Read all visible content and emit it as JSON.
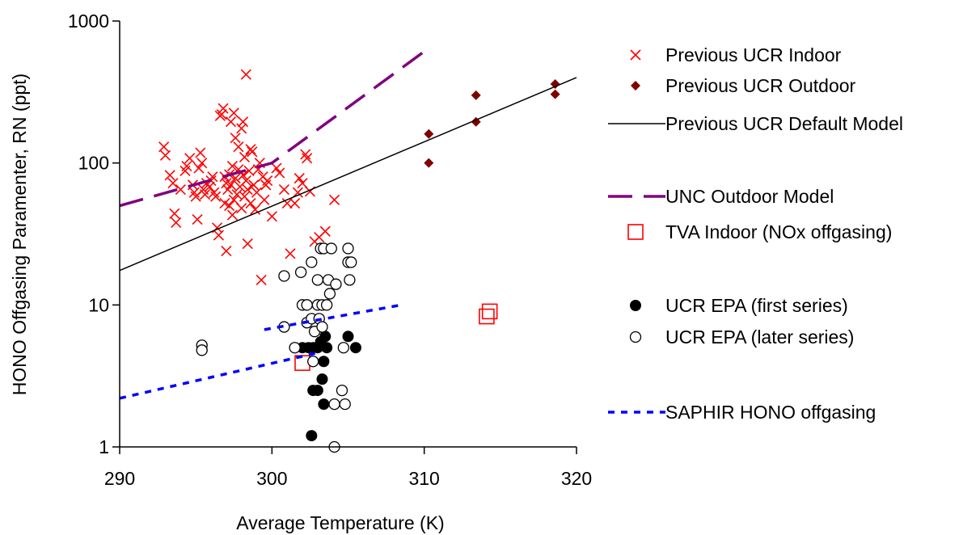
{
  "chart_data": {
    "type": "scatter",
    "title": "",
    "xlabel": "Average Temperature (K)",
    "ylabel": "HONO Offgasing Paramenter, RN (ppt)",
    "xlim": [
      290,
      320
    ],
    "ylim": [
      1,
      1000
    ],
    "y_scale": "log",
    "x_ticks": [
      "290",
      "300",
      "310",
      "320"
    ],
    "y_ticks": [
      "1",
      "10",
      "100",
      "1000"
    ],
    "grid": false,
    "legend_position": "right",
    "series": [
      {
        "name": "Previous UCR Indoor",
        "kind": "points",
        "marker": "x",
        "color": "#ff0000",
        "points": [
          [
            292.9,
            130
          ],
          [
            293.0,
            113
          ],
          [
            293.3,
            82
          ],
          [
            293.5,
            72
          ],
          [
            293.6,
            44
          ],
          [
            293.7,
            38
          ],
          [
            294.0,
            65
          ],
          [
            294.3,
            88
          ],
          [
            294.4,
            95
          ],
          [
            294.6,
            108
          ],
          [
            294.8,
            70
          ],
          [
            294.9,
            62
          ],
          [
            295.0,
            58
          ],
          [
            295.2,
            92
          ],
          [
            295.3,
            118
          ],
          [
            295.4,
            100
          ],
          [
            295.5,
            65
          ],
          [
            295.6,
            60
          ],
          [
            295.7,
            72
          ],
          [
            295.9,
            68
          ],
          [
            296.0,
            75
          ],
          [
            296.1,
            80
          ],
          [
            296.2,
            62
          ],
          [
            296.3,
            58
          ],
          [
            296.4,
            35
          ],
          [
            296.5,
            31
          ],
          [
            296.6,
            215
          ],
          [
            296.7,
            220
          ],
          [
            296.8,
            242
          ],
          [
            296.9,
            80
          ],
          [
            297.0,
            72
          ],
          [
            297.0,
            24
          ],
          [
            297.1,
            65
          ],
          [
            297.2,
            83
          ],
          [
            297.2,
            50
          ],
          [
            297.3,
            195
          ],
          [
            297.3,
            70
          ],
          [
            297.4,
            43
          ],
          [
            297.5,
            225
          ],
          [
            297.5,
            55
          ],
          [
            297.6,
            150
          ],
          [
            297.6,
            78
          ],
          [
            297.7,
            60
          ],
          [
            297.8,
            130
          ],
          [
            297.8,
            90
          ],
          [
            297.9,
            68
          ],
          [
            298.0,
            175
          ],
          [
            298.0,
            48
          ],
          [
            298.1,
            195
          ],
          [
            298.1,
            82
          ],
          [
            298.2,
            110
          ],
          [
            298.2,
            58
          ],
          [
            298.3,
            420
          ],
          [
            298.3,
            75
          ],
          [
            298.4,
            65
          ],
          [
            298.4,
            27
          ],
          [
            298.5,
            88
          ],
          [
            298.6,
            52
          ],
          [
            298.7,
            120
          ],
          [
            298.8,
            70
          ],
          [
            298.9,
            47
          ],
          [
            299.0,
            62
          ],
          [
            299.1,
            90
          ],
          [
            299.2,
            100
          ],
          [
            299.3,
            15
          ],
          [
            299.4,
            80
          ],
          [
            299.5,
            55
          ],
          [
            299.7,
            75
          ],
          [
            300.0,
            42
          ],
          [
            300.3,
            92
          ],
          [
            300.5,
            85
          ],
          [
            300.8,
            65
          ],
          [
            301.0,
            52
          ],
          [
            301.2,
            23
          ],
          [
            301.5,
            52
          ],
          [
            301.7,
            62
          ],
          [
            301.8,
            78
          ],
          [
            302.0,
            72
          ],
          [
            302.2,
            115
          ],
          [
            302.3,
            108
          ],
          [
            302.5,
            63
          ],
          [
            302.8,
            28
          ],
          [
            303.1,
            30
          ],
          [
            303.5,
            33
          ],
          [
            304.1,
            55
          ],
          [
            296.9,
            52
          ],
          [
            297.4,
            95
          ],
          [
            298.6,
            125
          ],
          [
            299.6,
            70
          ],
          [
            295.1,
            40
          ]
        ]
      },
      {
        "name": "Previous UCR Outdoor",
        "kind": "points",
        "marker": "diamond",
        "color": "#800000",
        "points": [
          [
            310.3,
            160
          ],
          [
            310.3,
            100
          ],
          [
            313.4,
            300
          ],
          [
            313.4,
            195
          ],
          [
            318.6,
            360
          ],
          [
            318.6,
            305
          ]
        ]
      },
      {
        "name": "Previous UCR Default Model",
        "kind": "line",
        "dash": "solid",
        "color": "#000000",
        "points": [
          [
            290,
            17.5
          ],
          [
            320,
            400
          ]
        ]
      },
      {
        "name": "UNC Outdoor Model",
        "kind": "line",
        "dash": "long-dash",
        "color": "#800080",
        "points": [
          [
            290,
            50
          ],
          [
            300,
            100
          ],
          [
            310,
            610
          ]
        ]
      },
      {
        "name": "TVA Indoor (NOx offgasing)",
        "kind": "points",
        "marker": "open-square",
        "color": "#ff0000",
        "points": [
          [
            302.0,
            3.9
          ],
          [
            314.1,
            8.3
          ],
          [
            314.3,
            9.0
          ]
        ]
      },
      {
        "name": "UCR EPA (first series)",
        "kind": "points",
        "marker": "filled-circle",
        "color": "#000000",
        "points": [
          [
            302.0,
            5.0
          ],
          [
            302.4,
            5.0
          ],
          [
            302.7,
            5.0
          ],
          [
            303.0,
            5.0
          ],
          [
            303.2,
            5.5
          ],
          [
            303.4,
            4.0
          ],
          [
            303.5,
            6.0
          ],
          [
            303.6,
            5.0
          ],
          [
            303.3,
            3.0
          ],
          [
            303.0,
            2.5
          ],
          [
            302.7,
            2.5
          ],
          [
            303.4,
            2.0
          ],
          [
            302.6,
            1.2
          ],
          [
            305.0,
            6.0
          ],
          [
            305.5,
            5.0
          ]
        ]
      },
      {
        "name": "UCR EPA (later series)",
        "kind": "points",
        "marker": "open-circle",
        "color": "#000000",
        "points": [
          [
            295.4,
            5.2
          ],
          [
            295.4,
            4.8
          ],
          [
            300.8,
            16.0
          ],
          [
            300.8,
            7.0
          ],
          [
            301.5,
            5.0
          ],
          [
            301.9,
            17.0
          ],
          [
            302.0,
            10.0
          ],
          [
            302.3,
            10.0
          ],
          [
            302.3,
            7.5
          ],
          [
            302.6,
            20.0
          ],
          [
            302.8,
            6.5
          ],
          [
            302.6,
            8.0
          ],
          [
            302.7,
            4.0
          ],
          [
            303.0,
            15.0
          ],
          [
            303.0,
            10.0
          ],
          [
            303.1,
            8.0
          ],
          [
            303.2,
            25.0
          ],
          [
            303.3,
            10.0
          ],
          [
            303.3,
            7.0
          ],
          [
            303.4,
            25.0
          ],
          [
            303.6,
            10.0
          ],
          [
            303.7,
            15.0
          ],
          [
            303.8,
            12.0
          ],
          [
            303.9,
            25.0
          ],
          [
            304.2,
            14.0
          ],
          [
            304.1,
            2.0
          ],
          [
            304.1,
            1.0
          ],
          [
            304.6,
            2.5
          ],
          [
            304.8,
            2.0
          ],
          [
            304.7,
            5.0
          ],
          [
            305.0,
            25.0
          ],
          [
            305.0,
            20.0
          ],
          [
            305.1,
            15.0
          ],
          [
            305.2,
            20.0
          ]
        ]
      },
      {
        "name": "SAPHIR HONO offgasing",
        "kind": "lines",
        "dash": "short-dash",
        "color": "#0000ff",
        "segments": [
          [
            [
              290,
              2.2
            ],
            [
              303,
              4.6
            ]
          ],
          [
            [
              299.5,
              6.7
            ],
            [
              308.5,
              10.0
            ]
          ]
        ]
      }
    ]
  }
}
